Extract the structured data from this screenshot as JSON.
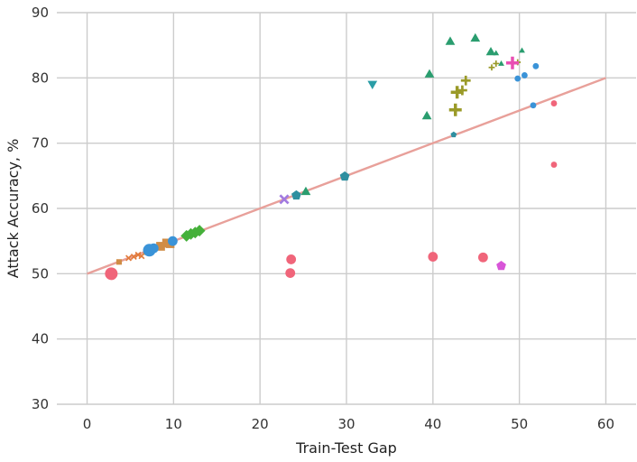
{
  "chart_data": {
    "type": "scatter",
    "title": "",
    "xlabel": "Train-Test Gap",
    "ylabel": "Attack Accuracy, %",
    "xlim": [
      -3.5,
      63.5
    ],
    "ylim": [
      30,
      90
    ],
    "xticks": [
      0,
      10,
      20,
      30,
      40,
      50,
      60
    ],
    "yticks": [
      30,
      40,
      50,
      60,
      70,
      80,
      90
    ],
    "grid": true,
    "reference_line": {
      "name": "y = 50 + x/2",
      "x": [
        0,
        60
      ],
      "y": [
        50,
        80
      ],
      "color": "#e8a09a"
    },
    "series": [
      {
        "name": "red-circles",
        "marker": "circle",
        "color": "#f0657a",
        "points": [
          {
            "x": 2.8,
            "y": 50.0,
            "s": "l"
          },
          {
            "x": 23.5,
            "y": 50.1,
            "s": "m"
          },
          {
            "x": 23.6,
            "y": 52.2,
            "s": "m"
          },
          {
            "x": 40.0,
            "y": 52.6,
            "s": "m"
          },
          {
            "x": 45.8,
            "y": 52.5,
            "s": "m"
          },
          {
            "x": 54.0,
            "y": 66.7,
            "s": "s"
          },
          {
            "x": 54.0,
            "y": 76.1,
            "s": "s"
          }
        ]
      },
      {
        "name": "orange-crosses",
        "marker": "x",
        "color": "#e27b3c",
        "points": [
          {
            "x": 4.8,
            "y": 52.4,
            "s": "s"
          },
          {
            "x": 5.4,
            "y": 52.6,
            "s": "s"
          },
          {
            "x": 5.9,
            "y": 52.9,
            "s": "s"
          },
          {
            "x": 6.3,
            "y": 52.7,
            "s": "s"
          }
        ]
      },
      {
        "name": "brown-squares",
        "marker": "square",
        "color": "#d08c45",
        "points": [
          {
            "x": 3.7,
            "y": 51.8,
            "s": "s"
          },
          {
            "x": 6.8,
            "y": 53.3,
            "s": "s"
          },
          {
            "x": 8.5,
            "y": 54.2,
            "s": "m"
          },
          {
            "x": 9.2,
            "y": 54.7,
            "s": "m"
          },
          {
            "x": 9.6,
            "y": 54.6,
            "s": "m"
          }
        ]
      },
      {
        "name": "blue-circles",
        "marker": "circle",
        "color": "#3a93d8",
        "points": [
          {
            "x": 7.2,
            "y": 53.6,
            "s": "l"
          },
          {
            "x": 7.7,
            "y": 53.9,
            "s": "m"
          },
          {
            "x": 9.9,
            "y": 55.0,
            "s": "m"
          },
          {
            "x": 49.8,
            "y": 79.9,
            "s": "s"
          },
          {
            "x": 50.6,
            "y": 80.4,
            "s": "s"
          },
          {
            "x": 51.6,
            "y": 75.8,
            "s": "s"
          },
          {
            "x": 51.9,
            "y": 81.8,
            "s": "s"
          }
        ]
      },
      {
        "name": "green-diamonds",
        "marker": "diamond",
        "color": "#45b03a",
        "points": [
          {
            "x": 11.5,
            "y": 55.8,
            "s": "m"
          },
          {
            "x": 12.0,
            "y": 56.1,
            "s": "m"
          },
          {
            "x": 12.5,
            "y": 56.3,
            "s": "m"
          },
          {
            "x": 13.0,
            "y": 56.6,
            "s": "m"
          }
        ]
      },
      {
        "name": "purple-crosses",
        "marker": "x",
        "color": "#a27ae0",
        "points": [
          {
            "x": 22.8,
            "y": 61.4,
            "s": "m"
          }
        ]
      },
      {
        "name": "teal-triangles-up",
        "marker": "triangle-up",
        "color": "#2a9d6f",
        "points": [
          {
            "x": 25.3,
            "y": 62.6,
            "s": "m"
          },
          {
            "x": 39.3,
            "y": 74.2,
            "s": "m"
          },
          {
            "x": 39.6,
            "y": 80.6,
            "s": "m"
          },
          {
            "x": 42.0,
            "y": 85.6,
            "s": "m"
          },
          {
            "x": 44.9,
            "y": 86.1,
            "s": "m"
          },
          {
            "x": 46.7,
            "y": 84.0,
            "s": "m"
          },
          {
            "x": 47.3,
            "y": 83.8,
            "s": "s"
          },
          {
            "x": 47.9,
            "y": 82.2,
            "s": "s"
          },
          {
            "x": 50.3,
            "y": 84.2,
            "s": "s"
          }
        ]
      },
      {
        "name": "teal-pentagons",
        "marker": "pentagon",
        "color": "#2f8fa0",
        "points": [
          {
            "x": 24.2,
            "y": 62.0,
            "s": "m"
          },
          {
            "x": 29.8,
            "y": 64.9,
            "s": "m"
          },
          {
            "x": 42.4,
            "y": 71.3,
            "s": "s"
          }
        ]
      },
      {
        "name": "teal-triangle-down",
        "marker": "triangle-down",
        "color": "#2a9da6",
        "points": [
          {
            "x": 33.0,
            "y": 79.0,
            "s": "m"
          }
        ]
      },
      {
        "name": "olive-plus",
        "marker": "plus",
        "color": "#9a9a28",
        "points": [
          {
            "x": 42.6,
            "y": 75.1,
            "s": "l"
          },
          {
            "x": 42.8,
            "y": 77.8,
            "s": "l"
          },
          {
            "x": 43.4,
            "y": 78.1,
            "s": "m"
          },
          {
            "x": 43.8,
            "y": 79.6,
            "s": "m"
          },
          {
            "x": 46.8,
            "y": 81.6,
            "s": "s"
          },
          {
            "x": 47.3,
            "y": 82.2,
            "s": "s"
          },
          {
            "x": 49.8,
            "y": 82.4,
            "s": "s"
          }
        ]
      },
      {
        "name": "magenta-plus",
        "marker": "plus",
        "color": "#e94fb3",
        "points": [
          {
            "x": 49.2,
            "y": 82.3,
            "s": "l"
          }
        ]
      },
      {
        "name": "magenta-pentagon",
        "marker": "pentagon",
        "color": "#d855d8",
        "points": [
          {
            "x": 47.9,
            "y": 51.2,
            "s": "m"
          }
        ]
      }
    ]
  }
}
